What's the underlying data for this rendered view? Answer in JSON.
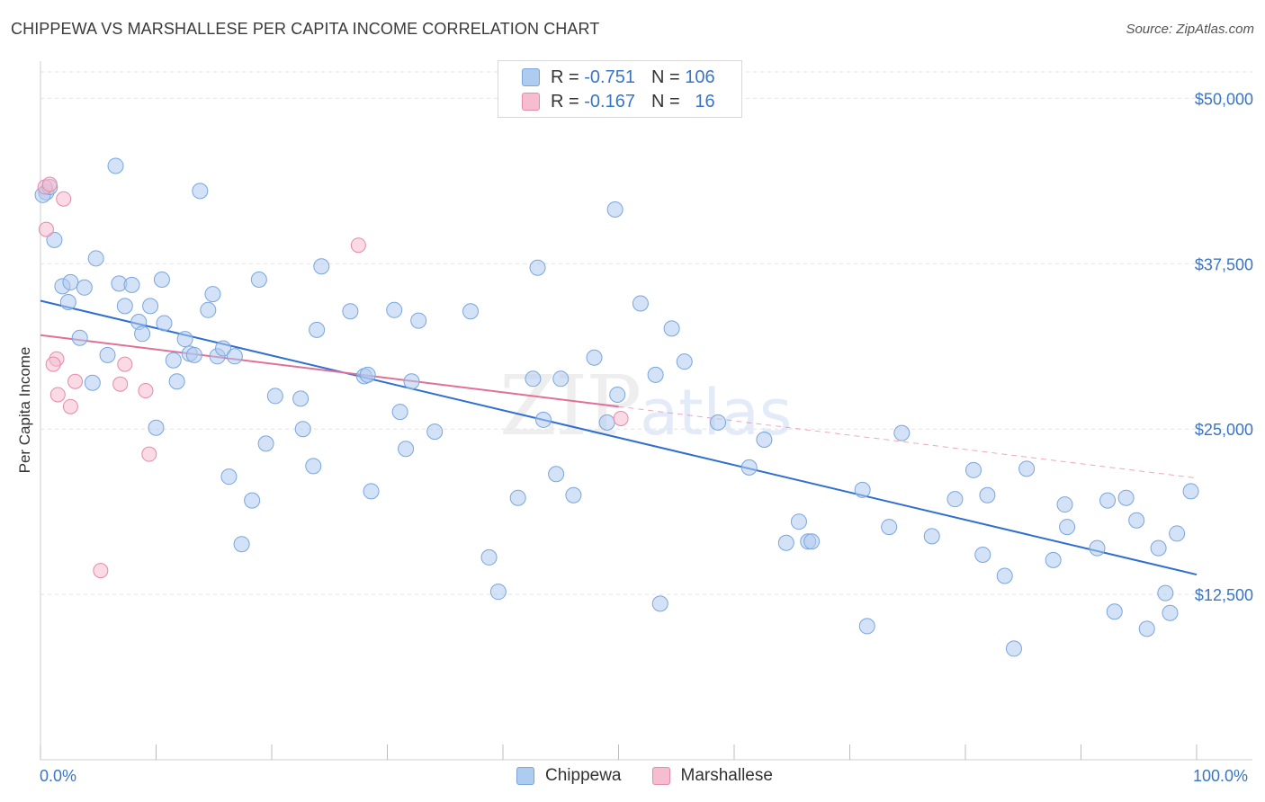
{
  "title": "CHIPPEWA VS MARSHALLESE PER CAPITA INCOME CORRELATION CHART",
  "source": "Source: ZipAtlas.com",
  "watermark": {
    "zip": "ZIP",
    "atlas": "atlas"
  },
  "legend": {
    "rows": [
      {
        "r_label": "R = ",
        "r_value": "-0.751",
        "n_label": "N = ",
        "n_value": "106",
        "color": "#aecbf0"
      },
      {
        "r_label": "R = ",
        "r_value": "-0.167",
        "n_label": "N = ",
        "n_value": "  16",
        "color": "#f6bcd0"
      }
    ]
  },
  "bottom_legend": [
    "Chippewa",
    "Marshallese"
  ],
  "colors": {
    "blue_fill": "#aecbf0",
    "blue_stroke": "#7aa6dc",
    "blue_line": "#2f6fcf",
    "pink_fill": "#f6bcd0",
    "pink_stroke": "#e58aa9",
    "pink_line": "#e07098",
    "tick_text": "#3a75c4",
    "grid": "#e4e4e4"
  },
  "chart_data": {
    "type": "scatter",
    "title": "CHIPPEWA VS MARSHALLESE PER CAPITA INCOME CORRELATION CHART",
    "xlabel": "",
    "ylabel": "Per Capita Income",
    "xlim": [
      0,
      100
    ],
    "ylim": [
      0,
      52000
    ],
    "x_tick_labels": [
      "0.0%",
      "100.0%"
    ],
    "y_ticks": [
      12500,
      25000,
      37500,
      50000
    ],
    "y_tick_labels": [
      "$12,500",
      "$25,000",
      "$37,500",
      "$50,000"
    ],
    "grid": true,
    "legend_position": "top-center",
    "series": [
      {
        "name": "Chippewa",
        "r": -0.751,
        "n": 106,
        "trend": {
          "x": [
            0,
            100
          ],
          "y": [
            34700,
            14000
          ]
        },
        "points": [
          [
            0.5,
            42900
          ],
          [
            1.2,
            39300
          ],
          [
            1.9,
            35800
          ],
          [
            2.4,
            34600
          ],
          [
            2.6,
            36100
          ],
          [
            3.4,
            31900
          ],
          [
            3.8,
            35700
          ],
          [
            4.5,
            28500
          ],
          [
            4.8,
            37900
          ],
          [
            5.8,
            30600
          ],
          [
            6.5,
            44900
          ],
          [
            6.8,
            36000
          ],
          [
            7.3,
            34300
          ],
          [
            7.9,
            35900
          ],
          [
            8.5,
            33100
          ],
          [
            8.8,
            32200
          ],
          [
            9.5,
            34300
          ],
          [
            10.0,
            25100
          ],
          [
            10.5,
            36300
          ],
          [
            10.7,
            33000
          ],
          [
            11.5,
            30200
          ],
          [
            11.8,
            28600
          ],
          [
            12.5,
            31800
          ],
          [
            12.9,
            30700
          ],
          [
            13.3,
            30600
          ],
          [
            13.8,
            43000
          ],
          [
            14.5,
            34000
          ],
          [
            14.9,
            35200
          ],
          [
            15.3,
            30500
          ],
          [
            15.8,
            31100
          ],
          [
            16.3,
            21400
          ],
          [
            16.8,
            30500
          ],
          [
            17.4,
            16300
          ],
          [
            18.3,
            19600
          ],
          [
            18.9,
            36300
          ],
          [
            19.5,
            23900
          ],
          [
            20.3,
            27500
          ],
          [
            22.5,
            27300
          ],
          [
            22.7,
            25000
          ],
          [
            23.6,
            22200
          ],
          [
            23.9,
            32500
          ],
          [
            24.3,
            37300
          ],
          [
            26.8,
            33900
          ],
          [
            28.0,
            29000
          ],
          [
            28.3,
            29100
          ],
          [
            28.6,
            20300
          ],
          [
            30.6,
            34000
          ],
          [
            31.1,
            26300
          ],
          [
            31.6,
            23500
          ],
          [
            32.1,
            28600
          ],
          [
            32.7,
            33200
          ],
          [
            34.1,
            24800
          ],
          [
            37.2,
            33900
          ],
          [
            38.8,
            15300
          ],
          [
            39.6,
            12700
          ],
          [
            41.3,
            19800
          ],
          [
            42.6,
            28800
          ],
          [
            43.0,
            37200
          ],
          [
            43.5,
            25700
          ],
          [
            44.6,
            21600
          ],
          [
            45.0,
            28800
          ],
          [
            46.1,
            20000
          ],
          [
            47.9,
            30400
          ],
          [
            49.0,
            25500
          ],
          [
            49.7,
            41600
          ],
          [
            49.9,
            27600
          ],
          [
            51.9,
            34500
          ],
          [
            53.2,
            29100
          ],
          [
            53.6,
            11800
          ],
          [
            54.6,
            32600
          ],
          [
            55.7,
            30100
          ],
          [
            58.6,
            25500
          ],
          [
            61.3,
            22100
          ],
          [
            62.6,
            24200
          ],
          [
            64.5,
            16400
          ],
          [
            65.6,
            18000
          ],
          [
            66.4,
            16500
          ],
          [
            66.7,
            16500
          ],
          [
            71.1,
            20400
          ],
          [
            71.5,
            10100
          ],
          [
            73.4,
            17600
          ],
          [
            74.5,
            24700
          ],
          [
            77.1,
            16900
          ],
          [
            79.1,
            19700
          ],
          [
            80.7,
            21900
          ],
          [
            81.5,
            15500
          ],
          [
            81.9,
            20000
          ],
          [
            83.4,
            13900
          ],
          [
            84.2,
            8400
          ],
          [
            85.3,
            22000
          ],
          [
            87.6,
            15100
          ],
          [
            88.6,
            19300
          ],
          [
            88.8,
            17600
          ],
          [
            91.4,
            16000
          ],
          [
            92.3,
            19600
          ],
          [
            92.9,
            11200
          ],
          [
            93.9,
            19800
          ],
          [
            94.8,
            18100
          ],
          [
            95.7,
            9900
          ],
          [
            96.7,
            16000
          ],
          [
            97.3,
            12600
          ],
          [
            97.7,
            11100
          ],
          [
            98.3,
            17100
          ],
          [
            99.5,
            20300
          ],
          [
            0.2,
            42700
          ],
          [
            0.8,
            43300
          ]
        ]
      },
      {
        "name": "Marshallese",
        "r": -0.167,
        "n": 16,
        "trend": {
          "x": [
            0,
            100
          ],
          "y": [
            32100,
            21300
          ]
        },
        "trend_solid_until": 50,
        "points": [
          [
            0.4,
            43300
          ],
          [
            0.8,
            43500
          ],
          [
            0.5,
            40100
          ],
          [
            2.0,
            42400
          ],
          [
            1.4,
            30300
          ],
          [
            1.1,
            29900
          ],
          [
            1.5,
            27600
          ],
          [
            2.6,
            26700
          ],
          [
            3.0,
            28600
          ],
          [
            5.2,
            14300
          ],
          [
            6.9,
            28400
          ],
          [
            7.3,
            29900
          ],
          [
            9.1,
            27900
          ],
          [
            9.4,
            23100
          ],
          [
            27.5,
            38900
          ],
          [
            50.2,
            25800
          ]
        ]
      }
    ]
  }
}
